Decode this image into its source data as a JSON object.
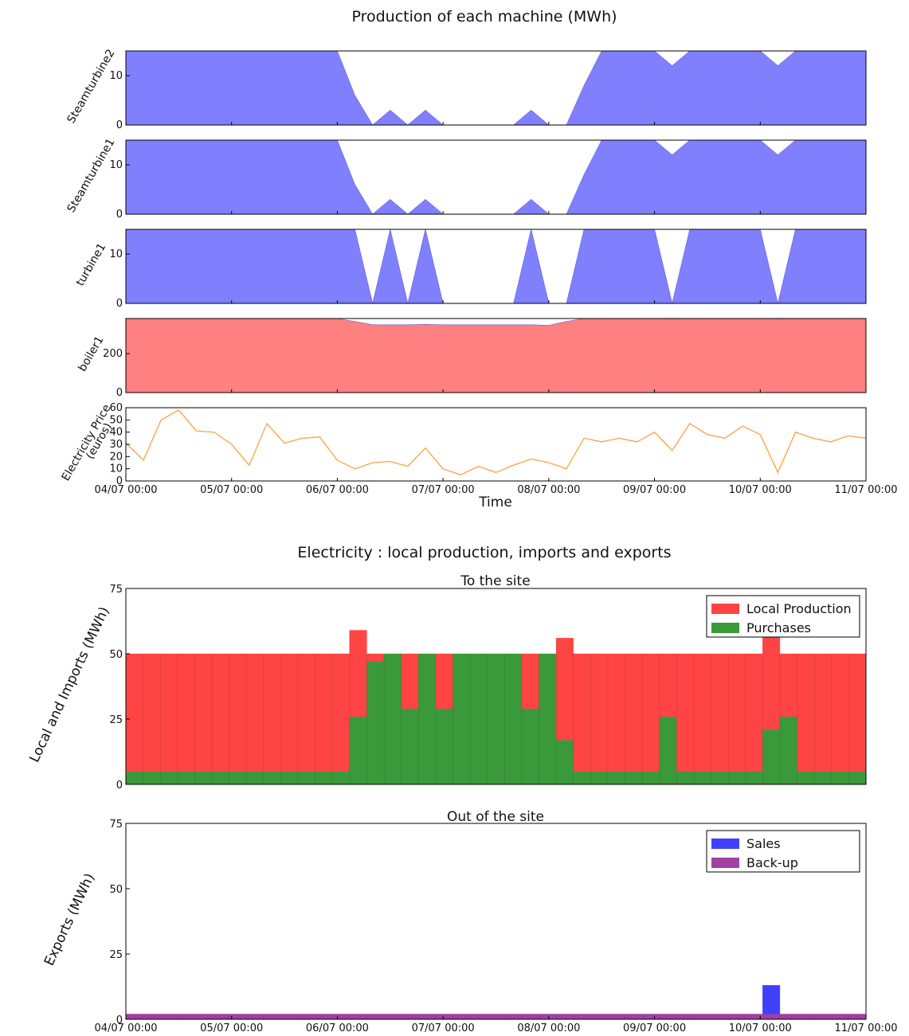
{
  "chart_data": [
    {
      "type": "area",
      "title": "Production of each machine (MWh)",
      "xlabel": "Time",
      "x": [
        "04/07 00:00",
        "04/07 04:00",
        "04/07 08:00",
        "04/07 12:00",
        "04/07 16:00",
        "04/07 20:00",
        "05/07 00:00",
        "05/07 04:00",
        "05/07 08:00",
        "05/07 12:00",
        "05/07 16:00",
        "05/07 20:00",
        "06/07 00:00",
        "06/07 04:00",
        "06/07 08:00",
        "06/07 12:00",
        "06/07 16:00",
        "06/07 20:00",
        "07/07 00:00",
        "07/07 04:00",
        "07/07 08:00",
        "07/07 12:00",
        "07/07 16:00",
        "07/07 20:00",
        "08/07 00:00",
        "08/07 04:00",
        "08/07 08:00",
        "08/07 12:00",
        "08/07 16:00",
        "08/07 20:00",
        "09/07 00:00",
        "09/07 04:00",
        "09/07 08:00",
        "09/07 12:00",
        "09/07 16:00",
        "09/07 20:00",
        "10/07 00:00",
        "10/07 04:00",
        "10/07 08:00",
        "10/07 12:00",
        "10/07 16:00",
        "10/07 20:00",
        "11/07 00:00"
      ],
      "x_ticks": [
        "04/07 00:00",
        "05/07 00:00",
        "06/07 00:00",
        "07/07 00:00",
        "08/07 00:00",
        "09/07 00:00",
        "10/07 00:00",
        "11/07 00:00"
      ],
      "panels": [
        {
          "ylabel": "Steamturbine2",
          "yticks": [
            "0",
            "10"
          ],
          "ylim": [
            0,
            15
          ],
          "color": "#8080ff",
          "values": [
            15,
            15,
            15,
            15,
            15,
            15,
            15,
            15,
            15,
            15,
            15,
            15,
            15,
            6,
            0,
            3,
            0,
            3,
            0,
            0,
            0,
            0,
            0,
            3,
            0,
            0,
            8,
            15,
            15,
            15,
            15,
            12,
            15,
            15,
            15,
            15,
            15,
            12,
            15,
            15,
            15,
            15,
            15
          ]
        },
        {
          "ylabel": "Steamturbine1",
          "yticks": [
            "0",
            "10"
          ],
          "ylim": [
            0,
            15
          ],
          "color": "#8080ff",
          "values": [
            15,
            15,
            15,
            15,
            15,
            15,
            15,
            15,
            15,
            15,
            15,
            15,
            15,
            6,
            0,
            3,
            0,
            3,
            0,
            0,
            0,
            0,
            0,
            3,
            0,
            0,
            8,
            15,
            15,
            15,
            15,
            12,
            15,
            15,
            15,
            15,
            15,
            12,
            15,
            15,
            15,
            15,
            15
          ]
        },
        {
          "ylabel": "turbine1",
          "yticks": [
            "0",
            "10"
          ],
          "ylim": [
            0,
            15
          ],
          "color": "#8080ff",
          "values": [
            15,
            15,
            15,
            15,
            15,
            15,
            15,
            15,
            15,
            15,
            15,
            15,
            15,
            15,
            0,
            15,
            0,
            15,
            0,
            0,
            0,
            0,
            0,
            15,
            0,
            0,
            15,
            15,
            15,
            15,
            15,
            0,
            15,
            15,
            15,
            15,
            15,
            0,
            15,
            15,
            15,
            15,
            15
          ]
        },
        {
          "ylabel": "boiler1",
          "yticks": [
            "0",
            "200"
          ],
          "ylim": [
            0,
            380
          ],
          "color": "#ff8080",
          "values": [
            380,
            380,
            380,
            380,
            380,
            380,
            380,
            380,
            380,
            380,
            380,
            380,
            380,
            365,
            348,
            348,
            348,
            350,
            348,
            348,
            348,
            348,
            348,
            348,
            345,
            365,
            380,
            380,
            380,
            380,
            380,
            378,
            380,
            380,
            380,
            380,
            380,
            378,
            380,
            380,
            380,
            380,
            380
          ]
        },
        {
          "ylabel": "Electricity Price",
          "ylabel2": "(euros)",
          "type": "line",
          "yticks": [
            "0",
            "10",
            "20",
            "30",
            "40",
            "50",
            "60"
          ],
          "ylim": [
            0,
            60
          ],
          "color": "#ffa040",
          "values": [
            31,
            17,
            50,
            58,
            41,
            40,
            30,
            13,
            47,
            31,
            35,
            36,
            17,
            10,
            15,
            16,
            12,
            27,
            10,
            5,
            12,
            7,
            13,
            18,
            15,
            10,
            35,
            32,
            35,
            32,
            40,
            25,
            47,
            38,
            35,
            45,
            38,
            7,
            40,
            35,
            32,
            37,
            35
          ]
        }
      ]
    },
    {
      "type": "bar",
      "title": "Electricity : local production, imports and exports",
      "subtitle": "To the site",
      "ylabel": "Local and Imports (MWh)",
      "yticks": [
        "0",
        "25",
        "50",
        "75"
      ],
      "ylim": [
        0,
        75
      ],
      "legend_position": "top-right",
      "series": [
        {
          "name": "Purchases",
          "color": "#3a9a3a",
          "values": [
            5,
            5,
            5,
            5,
            5,
            5,
            5,
            5,
            5,
            5,
            5,
            5,
            5,
            26,
            47,
            50,
            29,
            50,
            29,
            50,
            50,
            50,
            50,
            29,
            50,
            17,
            5,
            5,
            5,
            5,
            5,
            26,
            5,
            5,
            5,
            5,
            5,
            21,
            26,
            5,
            5,
            5,
            5
          ]
        },
        {
          "name": "Local Production",
          "color": "#ff4444",
          "values": [
            45,
            45,
            45,
            45,
            45,
            45,
            45,
            45,
            45,
            45,
            45,
            45,
            45,
            33,
            3,
            0,
            21,
            0,
            21,
            0,
            0,
            0,
            0,
            21,
            0,
            39,
            45,
            45,
            45,
            45,
            45,
            24,
            45,
            45,
            45,
            45,
            45,
            37,
            24,
            45,
            45,
            45,
            45
          ]
        }
      ]
    },
    {
      "type": "bar",
      "subtitle": "Out of the site",
      "ylabel": "Exports (MWh)",
      "yticks": [
        "0",
        "25",
        "50",
        "75"
      ],
      "ylim": [
        0,
        75
      ],
      "x_ticks": [
        "04/07 00:00",
        "05/07 00:00",
        "06/07 00:00",
        "07/07 00:00",
        "08/07 00:00",
        "09/07 00:00",
        "10/07 00:00",
        "11/07 00:00"
      ],
      "legend_position": "top-right",
      "series": [
        {
          "name": "Back-up",
          "color": "#a040a0",
          "values": [
            2,
            2,
            2,
            2,
            2,
            2,
            2,
            2,
            2,
            2,
            2,
            2,
            2,
            2,
            2,
            2,
            2,
            2,
            2,
            2,
            2,
            2,
            2,
            2,
            2,
            2,
            2,
            2,
            2,
            2,
            2,
            2,
            2,
            2,
            2,
            2,
            2,
            2,
            2,
            2,
            2,
            2,
            2
          ]
        },
        {
          "name": "Sales",
          "color": "#4040ff",
          "values": [
            0,
            0,
            0,
            0,
            0,
            0,
            0,
            0,
            0,
            0,
            0,
            0,
            0,
            0,
            0,
            0,
            0,
            0,
            0,
            0,
            0,
            0,
            0,
            0,
            0,
            0,
            0,
            0,
            0,
            0,
            0,
            0,
            0,
            0,
            0,
            0,
            0,
            11,
            0,
            0,
            0,
            0,
            0
          ]
        }
      ]
    }
  ]
}
